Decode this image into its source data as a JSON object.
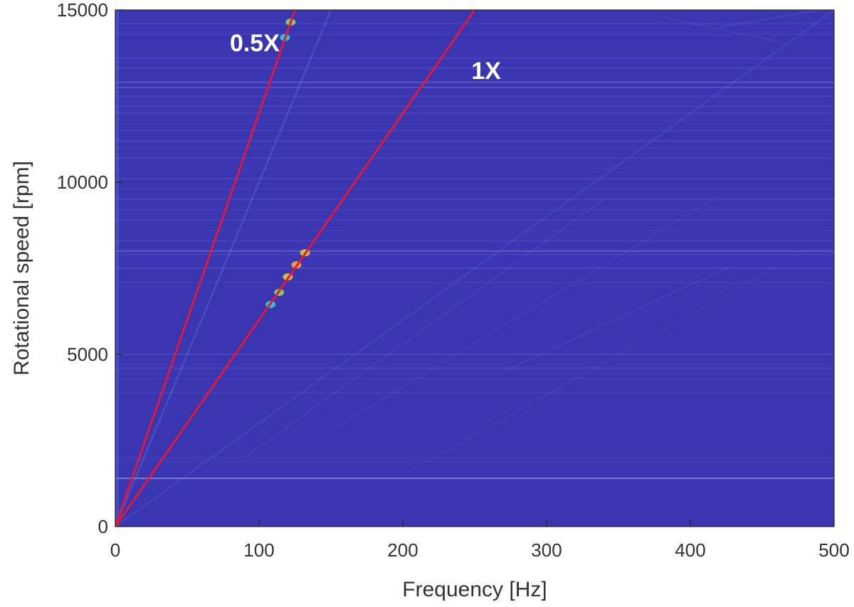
{
  "chart_data": {
    "type": "heatmap",
    "title": "",
    "xlabel": "Frequency [Hz]",
    "ylabel": "Rotational speed [rpm]",
    "xlim": [
      0,
      500
    ],
    "ylim": [
      0,
      15000
    ],
    "xticks": [
      0,
      100,
      200,
      300,
      400,
      500
    ],
    "yticks": [
      0,
      5000,
      10000,
      15000
    ],
    "grid": false,
    "colormap": "parula",
    "background_color": "#3a35b0",
    "order_lines": [
      {
        "label": "0.5X",
        "color": "#e0183c",
        "x": [
          0,
          125
        ],
        "y": [
          0,
          15000
        ]
      },
      {
        "label": "1X",
        "color": "#e0183c",
        "x": [
          0,
          250
        ],
        "y": [
          0,
          15000
        ]
      }
    ],
    "annotations": [
      {
        "text": "0.5X",
        "x": 97,
        "y": 13800
      },
      {
        "text": "1X",
        "x": 258,
        "y": 13000
      }
    ],
    "hot_spots": [
      {
        "x": 108,
        "y": 6450,
        "color": "#2fd3c8"
      },
      {
        "x": 114,
        "y": 6800,
        "color": "#8fd35a"
      },
      {
        "x": 120,
        "y": 7250,
        "color": "#e7c52f"
      },
      {
        "x": 126,
        "y": 7600,
        "color": "#f6a93a"
      },
      {
        "x": 132,
        "y": 7950,
        "color": "#e7c52f"
      },
      {
        "x": 118,
        "y": 14200,
        "color": "#2fd3c8"
      },
      {
        "x": 122,
        "y": 14650,
        "color": "#8fd35a"
      }
    ]
  }
}
